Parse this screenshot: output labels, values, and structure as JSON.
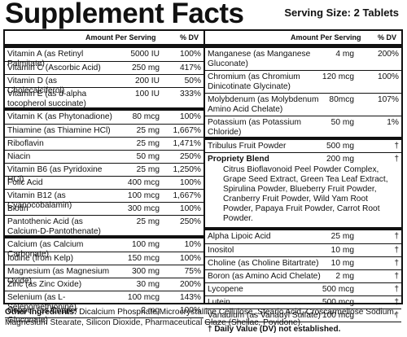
{
  "title": "Supplement Facts",
  "serving_size": "Serving Size: 2 Tablets",
  "headers": {
    "amount": "Amount Per Serving",
    "dv": "% DV"
  },
  "left_rows": [
    {
      "name": "Vitamin A (as Retinyl Palmitate)",
      "amount": "5000 IU",
      "dv": "100%"
    },
    {
      "name": "Vitamin C (Ascorbic Acid)",
      "amount": "250 mg",
      "dv": "417%"
    },
    {
      "name": "Vitamin D (as Cholecalciferol)",
      "amount": "200 IU",
      "dv": "50%"
    },
    {
      "name": "Vitamin E (as d-alpha tocopherol succinate)",
      "amount": "100 IU",
      "dv": "333%"
    },
    {
      "name": "Vitamin K (as Phytonadione)",
      "amount": "80 mcg",
      "dv": "100%"
    },
    {
      "name": "Thiamine (as Thiamine HCl)",
      "amount": "25 mg",
      "dv": "1,667%"
    },
    {
      "name": "Riboflavin",
      "amount": "25 mg",
      "dv": "1,471%"
    },
    {
      "name": "Niacin",
      "amount": "50 mg",
      "dv": "250%"
    },
    {
      "name": "Vitamin B6 (as Pyridoxine HCl)",
      "amount": "25 mg",
      "dv": "1,250%"
    },
    {
      "name": "Folic Acid",
      "amount": "400 mcg",
      "dv": "100%"
    },
    {
      "name": "Vitamin B12 (as Cyanocobalamin)",
      "amount": "100 mcg",
      "dv": "1,667%"
    },
    {
      "name": "Biotin",
      "amount": "300 mcg",
      "dv": "100%"
    },
    {
      "name": "Pantothenic Acid (as Calcium-D-Pantothenate)",
      "amount": "25 mg",
      "dv": "250%"
    },
    {
      "name": "Calcium (as Calcium Carbonate)",
      "amount": "100 mg",
      "dv": "10%"
    },
    {
      "name": "Iodine (from Kelp)",
      "amount": "150 mcg",
      "dv": "100%"
    },
    {
      "name": "Magnesium (as Magnesium Oxide)",
      "amount": "300 mg",
      "dv": "75%"
    },
    {
      "name": "Zinc (as Zinc Oxide)",
      "amount": "30 mg",
      "dv": "200%"
    },
    {
      "name": "Selenium (as L-Selenomethionine)",
      "amount": "100 mcg",
      "dv": "143%"
    },
    {
      "name": "Copper (as Copper Gluconate)",
      "amount": "2 mg",
      "dv": "100%"
    }
  ],
  "right_rows_top": [
    {
      "name": "Manganese (as Manganese Gluconate)",
      "amount": "4 mg",
      "dv": "200%"
    },
    {
      "name": "Chromium (as Chromium Dinicotinate Glycinate)",
      "amount": "120 mcg",
      "dv": "100%"
    },
    {
      "name": "Molybdenum (as Molybdenum Amino Acid Chelate)",
      "amount": "80mcg",
      "dv": "107%"
    },
    {
      "name": "Potassium (as Potassium Chloride)",
      "amount": "50 mg",
      "dv": "1%"
    },
    {
      "name": "Tribulus Fruit Powder",
      "amount": "500 mg",
      "dv": "†"
    }
  ],
  "blend": {
    "name": "Propriety Blend",
    "amount": "200 mg",
    "dv": "†",
    "ingredients": "Citrus Bioflavonoid Peel Powder Complex, Grape Seed Extract, Green Tea Leaf Extract, Spirulina Powder, Blueberry Fruit Powder, Cranberry Fruit Powder, Wild Yam Root Powder, Papaya Fruit Powder, Carrot Root Powder."
  },
  "right_rows_bottom": [
    {
      "name": "Alpha Lipoic Acid",
      "amount": "25 mg",
      "dv": "†"
    },
    {
      "name": "Inositol",
      "amount": "10 mg",
      "dv": "†"
    },
    {
      "name": "Choline (as Choline Bitartrate)",
      "amount": "10 mg",
      "dv": "†"
    },
    {
      "name": "Boron (as Amino Acid Chelate)",
      "amount": "2 mg",
      "dv": "†"
    },
    {
      "name": "Lycopene",
      "amount": "500 mcg",
      "dv": "†"
    },
    {
      "name": "Lutein",
      "amount": "500 mcg",
      "dv": "†"
    },
    {
      "name": "Vanadium (as Vanadyl Sulfate)",
      "amount": "100 mcg",
      "dv": "†"
    }
  ],
  "dv_note": "† Daily Value (DV) not established.",
  "other_ingredients": {
    "label": "Other Ingredients:",
    "text": " Dicalcium Phosphate,Microcrystalline Cellulose, Stearic Acid, Croscarmellose Sodium, Magnesium Stearate, Silicon Dioxide, Pharmaceutical Glaze (Shellac, Povidone)."
  }
}
